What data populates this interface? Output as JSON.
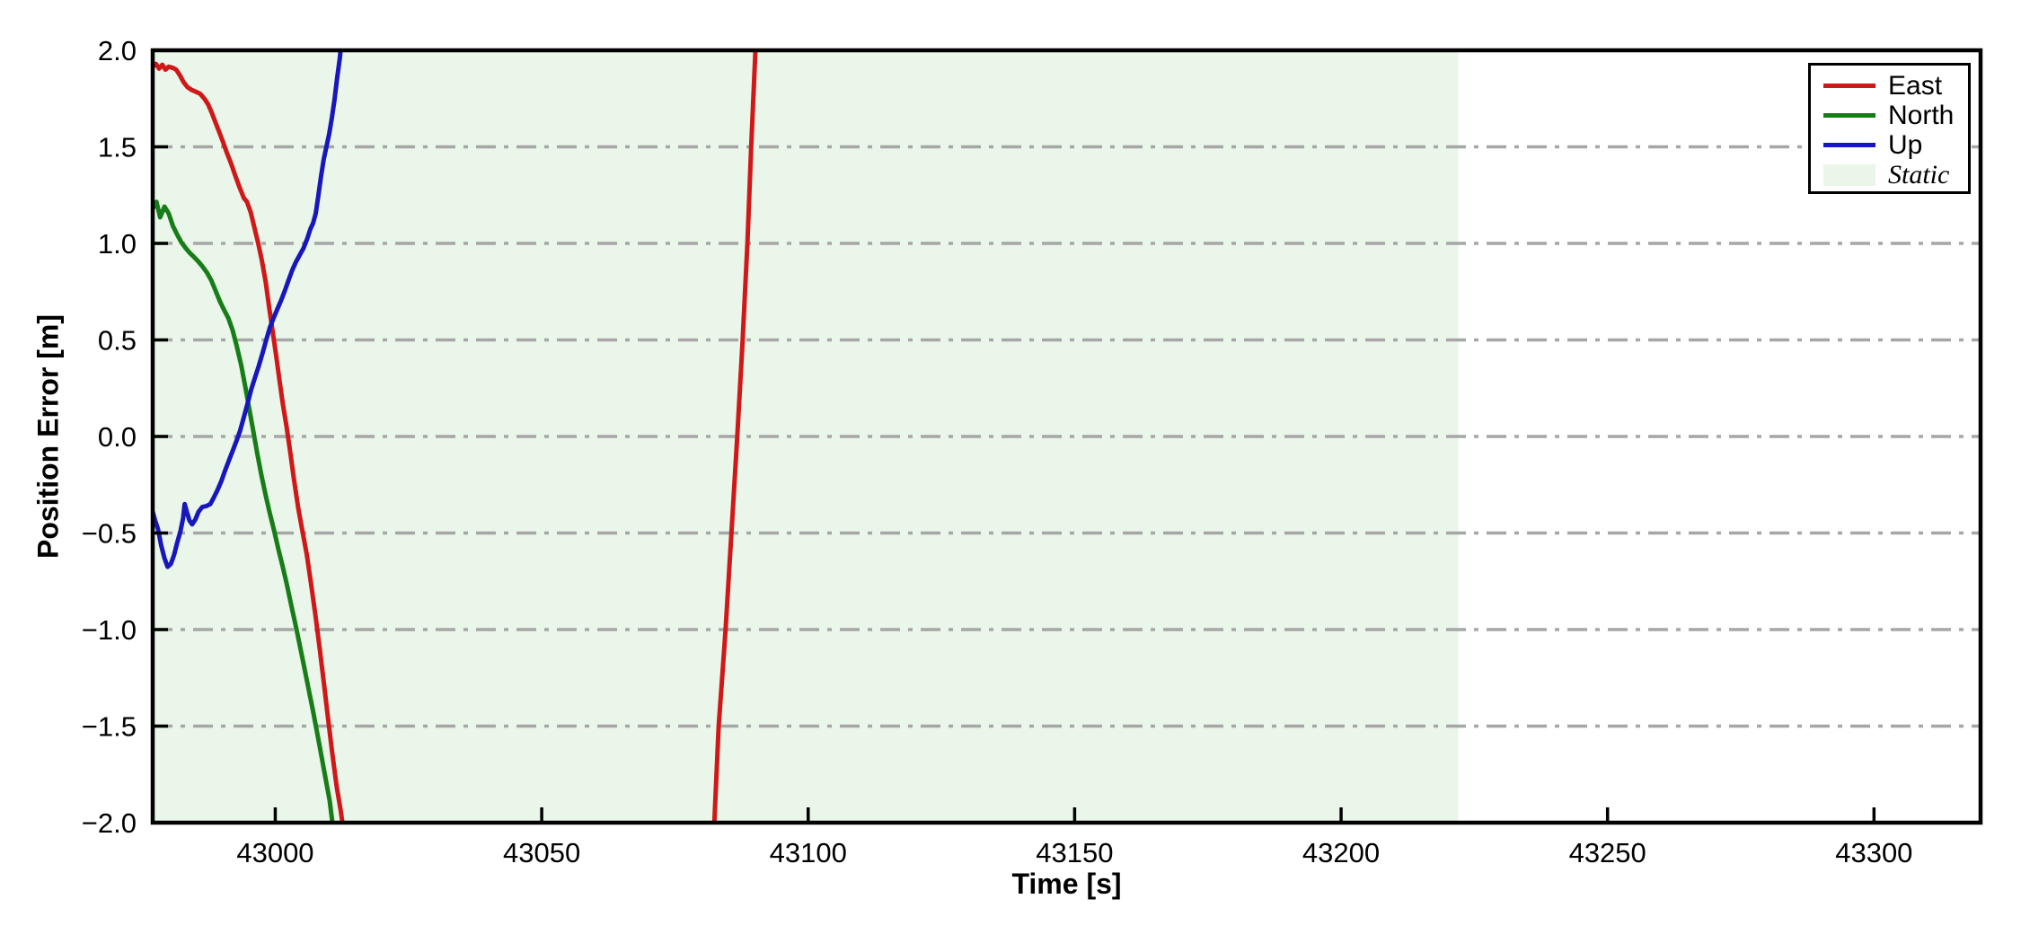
{
  "chart_data": {
    "type": "line",
    "title": "",
    "xlabel": "Time [s]",
    "ylabel": "Position Error [m]",
    "xlim": [
      42977,
      43320
    ],
    "ylim": [
      -2.0,
      2.0
    ],
    "x_ticks": [
      43000,
      43050,
      43100,
      43150,
      43200,
      43250,
      43300
    ],
    "x_tick_labels": [
      "43000",
      "43050",
      "43100",
      "43150",
      "43200",
      "43250",
      "43300"
    ],
    "y_ticks": [
      -2.0,
      -1.5,
      -1.0,
      -0.5,
      0.0,
      0.5,
      1.0,
      1.5,
      2.0
    ],
    "y_tick_labels": [
      "−2.0",
      "−1.5",
      "−1.0",
      "−0.5",
      "0.0",
      "0.5",
      "1.0",
      "1.5",
      "2.0"
    ],
    "grid": {
      "axis": "y",
      "style": "dash-dot",
      "color": "#a6a6a6",
      "values": [
        -1.5,
        -1.0,
        -0.5,
        0.0,
        0.5,
        1.0,
        1.5
      ]
    },
    "static_region": {
      "label": "Static",
      "x_start": 42977,
      "x_end": 43222,
      "color": "#e9f6e9"
    },
    "legend": {
      "position": "upper right",
      "entries": [
        {
          "label": "East",
          "color": "#d01818",
          "type": "line"
        },
        {
          "label": "North",
          "color": "#177d17",
          "type": "line"
        },
        {
          "label": "Up",
          "color": "#1717bb",
          "type": "line"
        },
        {
          "label": "Static",
          "color": "#e9f6e9",
          "type": "patch"
        }
      ]
    },
    "series": [
      {
        "name": "East",
        "color": "#d01818",
        "segments": [
          [
            [
              42977.0,
              1.915
            ],
            [
              42977.6,
              1.93
            ],
            [
              42978.2,
              1.905
            ],
            [
              42978.8,
              1.925
            ],
            [
              42979.4,
              1.9
            ],
            [
              42980.0,
              1.915
            ],
            [
              42980.7,
              1.91
            ],
            [
              42981.4,
              1.9
            ],
            [
              42982.1,
              1.87
            ],
            [
              42982.8,
              1.835
            ],
            [
              42983.5,
              1.81
            ],
            [
              42984.3,
              1.795
            ],
            [
              42985.1,
              1.785
            ],
            [
              42985.9,
              1.775
            ],
            [
              42986.7,
              1.75
            ],
            [
              42987.4,
              1.72
            ],
            [
              42988.1,
              1.675
            ],
            [
              42988.8,
              1.625
            ],
            [
              42989.5,
              1.575
            ],
            [
              42990.2,
              1.525
            ],
            [
              42990.9,
              1.47
            ],
            [
              42991.7,
              1.415
            ],
            [
              42992.5,
              1.35
            ],
            [
              42993.3,
              1.29
            ],
            [
              42994.1,
              1.235
            ],
            [
              42994.7,
              1.215
            ],
            [
              42995.4,
              1.16
            ],
            [
              42996.1,
              1.08
            ],
            [
              42996.8,
              1.0
            ],
            [
              42997.5,
              0.91
            ],
            [
              42998.2,
              0.8
            ],
            [
              42998.9,
              0.66
            ],
            [
              42999.5,
              0.545
            ],
            [
              43000.1,
              0.43
            ],
            [
              43000.7,
              0.31
            ],
            [
              43001.4,
              0.17
            ],
            [
              43002.1,
              0.055
            ],
            [
              43002.8,
              -0.08
            ],
            [
              43003.5,
              -0.22
            ],
            [
              43004.3,
              -0.37
            ],
            [
              43005.1,
              -0.49
            ],
            [
              43005.9,
              -0.61
            ],
            [
              43006.7,
              -0.76
            ],
            [
              43007.5,
              -0.92
            ],
            [
              43008.3,
              -1.09
            ],
            [
              43009.1,
              -1.27
            ],
            [
              43009.9,
              -1.46
            ],
            [
              43010.7,
              -1.64
            ],
            [
              43011.5,
              -1.81
            ],
            [
              43012.3,
              -1.94
            ],
            [
              43012.9,
              -2.06
            ]
          ],
          [
            [
              43082.3,
              -2.06
            ],
            [
              43083.2,
              -1.5
            ],
            [
              43084.5,
              -1.0
            ],
            [
              43085.6,
              -0.5
            ],
            [
              43086.7,
              0.0
            ],
            [
              43087.7,
              0.5
            ],
            [
              43088.6,
              1.0
            ],
            [
              43089.3,
              1.5
            ],
            [
              43090.2,
              2.06
            ]
          ]
        ]
      },
      {
        "name": "North",
        "color": "#177d17",
        "segments": [
          [
            [
              42977.0,
              1.18
            ],
            [
              42977.7,
              1.215
            ],
            [
              42978.4,
              1.135
            ],
            [
              42979.2,
              1.19
            ],
            [
              42980.0,
              1.155
            ],
            [
              42980.8,
              1.09
            ],
            [
              42981.6,
              1.045
            ],
            [
              42982.4,
              1.005
            ],
            [
              42983.2,
              0.975
            ],
            [
              42984.0,
              0.95
            ],
            [
              42984.8,
              0.928
            ],
            [
              42985.6,
              0.905
            ],
            [
              42986.4,
              0.878
            ],
            [
              42987.2,
              0.848
            ],
            [
              42988.0,
              0.808
            ],
            [
              42988.8,
              0.755
            ],
            [
              42989.6,
              0.7
            ],
            [
              42990.4,
              0.655
            ],
            [
              42991.2,
              0.613
            ],
            [
              42992.0,
              0.55
            ],
            [
              42992.8,
              0.465
            ],
            [
              42993.6,
              0.37
            ],
            [
              42994.4,
              0.255
            ],
            [
              42995.2,
              0.13
            ],
            [
              42995.9,
              0.025
            ],
            [
              42996.6,
              -0.085
            ],
            [
              42997.4,
              -0.2
            ],
            [
              42998.2,
              -0.305
            ],
            [
              42999.0,
              -0.4
            ],
            [
              42999.8,
              -0.49
            ],
            [
              43000.6,
              -0.585
            ],
            [
              43001.4,
              -0.675
            ],
            [
              43002.2,
              -0.77
            ],
            [
              43003.0,
              -0.875
            ],
            [
              43003.8,
              -0.975
            ],
            [
              43004.6,
              -1.08
            ],
            [
              43005.4,
              -1.19
            ],
            [
              43006.2,
              -1.3
            ],
            [
              43007.0,
              -1.41
            ],
            [
              43007.8,
              -1.525
            ],
            [
              43008.6,
              -1.645
            ],
            [
              43009.4,
              -1.765
            ],
            [
              43010.2,
              -1.885
            ],
            [
              43011.0,
              -2.06
            ]
          ]
        ]
      },
      {
        "name": "Up",
        "color": "#1717bb",
        "segments": [
          [
            [
              42977.0,
              -0.39
            ],
            [
              42977.5,
              -0.44
            ],
            [
              42978.0,
              -0.48
            ],
            [
              42978.6,
              -0.565
            ],
            [
              42979.2,
              -0.63
            ],
            [
              42979.8,
              -0.675
            ],
            [
              42980.4,
              -0.66
            ],
            [
              42981.0,
              -0.615
            ],
            [
              42981.6,
              -0.55
            ],
            [
              42982.2,
              -0.49
            ],
            [
              42982.7,
              -0.425
            ],
            [
              42983.0,
              -0.35
            ],
            [
              42983.4,
              -0.39
            ],
            [
              42983.9,
              -0.435
            ],
            [
              42984.4,
              -0.455
            ],
            [
              42985.0,
              -0.43
            ],
            [
              42985.6,
              -0.39
            ],
            [
              42986.3,
              -0.365
            ],
            [
              42987.1,
              -0.36
            ],
            [
              42987.8,
              -0.35
            ],
            [
              42988.5,
              -0.315
            ],
            [
              42989.2,
              -0.275
            ],
            [
              42989.9,
              -0.23
            ],
            [
              42990.6,
              -0.175
            ],
            [
              42991.3,
              -0.125
            ],
            [
              42992.0,
              -0.075
            ],
            [
              42992.7,
              -0.025
            ],
            [
              42993.4,
              0.03
            ],
            [
              42994.1,
              0.1
            ],
            [
              42994.8,
              0.17
            ],
            [
              42995.5,
              0.245
            ],
            [
              42996.2,
              0.305
            ],
            [
              42996.9,
              0.365
            ],
            [
              42997.6,
              0.43
            ],
            [
              42998.3,
              0.5
            ],
            [
              42999.0,
              0.565
            ],
            [
              42999.7,
              0.615
            ],
            [
              43000.4,
              0.66
            ],
            [
              43001.1,
              0.705
            ],
            [
              43001.8,
              0.755
            ],
            [
              43002.5,
              0.81
            ],
            [
              43003.2,
              0.862
            ],
            [
              43003.9,
              0.905
            ],
            [
              43004.6,
              0.94
            ],
            [
              43005.3,
              0.975
            ],
            [
              43006.0,
              1.025
            ],
            [
              43006.6,
              1.075
            ],
            [
              43007.1,
              1.105
            ],
            [
              43007.6,
              1.155
            ],
            [
              43008.1,
              1.25
            ],
            [
              43008.6,
              1.35
            ],
            [
              43009.1,
              1.435
            ],
            [
              43009.6,
              1.5
            ],
            [
              43010.1,
              1.565
            ],
            [
              43010.6,
              1.645
            ],
            [
              43011.1,
              1.74
            ],
            [
              43011.6,
              1.855
            ],
            [
              43012.1,
              1.955
            ],
            [
              43012.5,
              2.06
            ]
          ]
        ]
      }
    ]
  }
}
